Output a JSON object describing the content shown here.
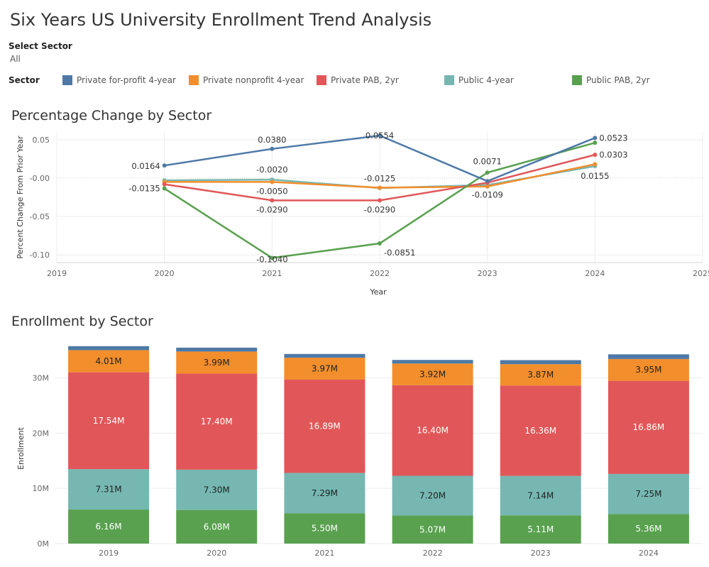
{
  "title": "Six Years US University Enrollment Trend Analysis",
  "filter": {
    "label": "Select Sector",
    "value": "All"
  },
  "legend": {
    "title": "Sector",
    "items": [
      {
        "label": "Private for-profit 4-year",
        "color": "#4e79a7"
      },
      {
        "label": "Private nonprofit 4-year",
        "color": "#f28e2b"
      },
      {
        "label": "Private PAB, 2yr",
        "color": "#e15759"
      },
      {
        "label": "Public 4-year",
        "color": "#76b7b2"
      },
      {
        "label": "Public PAB, 2yr",
        "color": "#59a14f"
      }
    ]
  },
  "line_section_title": "Percentage Change by Sector",
  "bar_section_title": "Enrollment by Sector",
  "chart_data": [
    {
      "type": "line",
      "xlabel": "Year",
      "ylabel": "Percent Change From Prior Year",
      "xlim": [
        2019,
        2025
      ],
      "ylim": [
        -0.11,
        0.06
      ],
      "xticks": [
        "2019",
        "2020",
        "2021",
        "2022",
        "2023",
        "2024",
        "2025"
      ],
      "yticks": [
        {
          "value": 0.05,
          "label": "0.05"
        },
        {
          "value": 0.0,
          "label": "-0.00"
        },
        {
          "value": -0.05,
          "label": "-0.05"
        },
        {
          "value": -0.1,
          "label": "-0.10"
        }
      ],
      "x": [
        2020,
        2021,
        2022,
        2023,
        2024
      ],
      "series": [
        {
          "name": "Private for-profit 4-year",
          "color": "#4e79a7",
          "values": [
            0.0164,
            0.038,
            0.0554,
            -0.004,
            0.0523
          ],
          "labels": [
            "0.0164",
            "0.0380",
            "0.0554",
            "",
            "0.0523"
          ]
        },
        {
          "name": "Private nonprofit 4-year",
          "color": "#f28e2b",
          "values": [
            -0.005,
            -0.005,
            -0.0125,
            -0.0109,
            0.018
          ],
          "labels": [
            "",
            "-0.0050",
            "-0.0125",
            "-0.0109",
            ""
          ]
        },
        {
          "name": "Private PAB, 2yr",
          "color": "#e15759",
          "values": [
            -0.008,
            -0.029,
            -0.029,
            -0.006,
            0.0303
          ],
          "labels": [
            "",
            "-0.0290",
            "-0.0290",
            "",
            "0.0303"
          ]
        },
        {
          "name": "Public 4-year",
          "color": "#76b7b2",
          "values": [
            -0.003,
            -0.002,
            -0.013,
            -0.009,
            0.0155
          ],
          "labels": [
            "",
            "-0.0020",
            "",
            "",
            "0.0155"
          ]
        },
        {
          "name": "Public PAB, 2yr",
          "color": "#59a14f",
          "values": [
            -0.0135,
            -0.104,
            -0.0851,
            0.0071,
            0.046
          ],
          "labels": [
            "-0.0135",
            "-0.1040",
            "-0.0851",
            "0.0071",
            ""
          ]
        }
      ]
    },
    {
      "type": "bar",
      "stacked": true,
      "ylabel": "Enrollment",
      "ylim": [
        0,
        37
      ],
      "yticks": [
        {
          "value": 0,
          "label": "0M"
        },
        {
          "value": 10,
          "label": "10M"
        },
        {
          "value": 20,
          "label": "20M"
        },
        {
          "value": 30,
          "label": "30M"
        }
      ],
      "categories": [
        "2019",
        "2020",
        "2021",
        "2022",
        "2023",
        "2024"
      ],
      "series": [
        {
          "name": "Public PAB, 2yr",
          "color": "#59a14f",
          "text_color": "#ffffff",
          "values": [
            6.16,
            6.08,
            5.5,
            5.07,
            5.11,
            5.36
          ],
          "labels": [
            "6.16M",
            "6.08M",
            "5.50M",
            "5.07M",
            "5.11M",
            "5.36M"
          ]
        },
        {
          "name": "Public 4-year",
          "color": "#76b7b2",
          "text_color": "#222222",
          "values": [
            7.31,
            7.3,
            7.29,
            7.2,
            7.14,
            7.25
          ],
          "labels": [
            "7.31M",
            "7.30M",
            "7.29M",
            "7.20M",
            "7.14M",
            "7.25M"
          ]
        },
        {
          "name": "Private PAB, 2yr",
          "color": "#e15759",
          "text_color": "#ffffff",
          "values": [
            17.54,
            17.4,
            16.89,
            16.4,
            16.36,
            16.86
          ],
          "labels": [
            "17.54M",
            "17.40M",
            "16.89M",
            "16.40M",
            "16.36M",
            "16.86M"
          ]
        },
        {
          "name": "Private nonprofit 4-year",
          "color": "#f28e2b",
          "text_color": "#222222",
          "values": [
            4.01,
            3.99,
            3.97,
            3.92,
            3.87,
            3.95
          ],
          "labels": [
            "4.01M",
            "3.99M",
            "3.97M",
            "3.92M",
            "3.87M",
            "3.95M"
          ]
        },
        {
          "name": "Private for-profit 4-year",
          "color": "#4e79a7",
          "text_color": "#ffffff",
          "values": [
            0.72,
            0.7,
            0.68,
            0.66,
            0.73,
            0.84
          ],
          "labels": [
            "",
            "",
            "",
            "",
            "",
            ""
          ]
        }
      ]
    }
  ]
}
